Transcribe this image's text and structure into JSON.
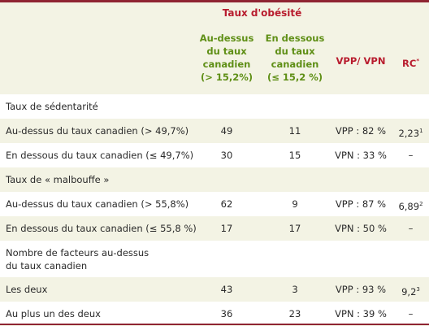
{
  "header": {
    "group_title": "Taux d'obésité",
    "above": [
      "Au-dessus",
      "du taux",
      "canadien",
      "(> 15,2%)"
    ],
    "below": [
      "En dessous",
      "du taux",
      "canadien",
      "(≤ 15,2 %)"
    ],
    "vpp_vpn": "VPP/ VPN",
    "rc": "RC",
    "rc_sup": "*"
  },
  "rows": {
    "sed_title": "Taux de sédentarité",
    "sed_above": {
      "label": "Au-dessus du taux canadien (> 49,7%)",
      "above": "49",
      "below": "11",
      "vpp": "VPP : 82 %",
      "rc": "2,23",
      "rc_sup": "1"
    },
    "sed_below": {
      "label": "En dessous du taux canadien (≤ 49,7%)",
      "above": "30",
      "below": "15",
      "vpp": "VPN : 33 %",
      "rc": "–"
    },
    "mal_title": "Taux de « malbouffe »",
    "mal_above": {
      "label": "Au-dessus du taux canadien (> 55,8%)",
      "above": "62",
      "below": "9",
      "vpp": "VPP : 87 %",
      "rc": "6,89",
      "rc_sup": "2"
    },
    "mal_below": {
      "label": "En dessous du taux canadien (≤ 55,8 %)",
      "above": "17",
      "below": "17",
      "vpp": "VPN : 50 %",
      "rc": "–"
    },
    "nb_title_1": "Nombre de facteurs au-dessus",
    "nb_title_2": "du taux canadien",
    "les_deux": {
      "label": "Les deux",
      "above": "43",
      "below": "3",
      "vpp": "VPP : 93 %",
      "rc": "9,2",
      "rc_sup": "3"
    },
    "au_plus": {
      "label": "Au plus un des deux",
      "above": "36",
      "below": "23",
      "vpp": "VPN : 39 %",
      "rc": "–"
    }
  },
  "colors": {
    "accent_red": "#b81c2e",
    "accent_green": "#5f8f16",
    "row_alt": "#f3f3e4"
  }
}
